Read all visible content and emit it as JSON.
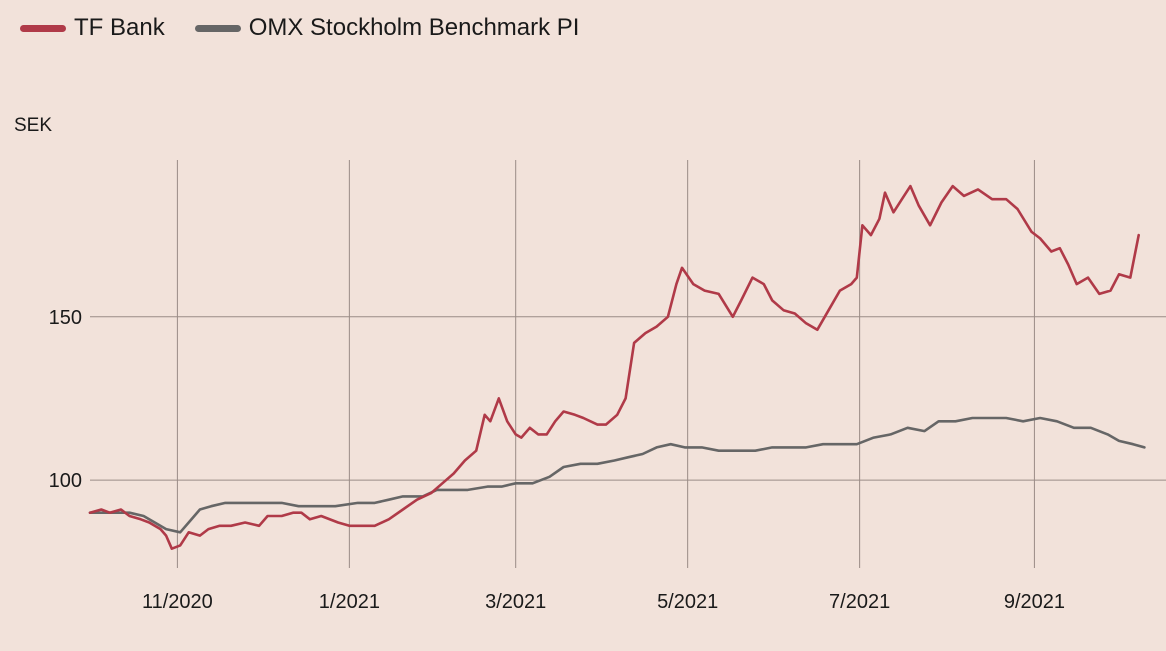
{
  "legend": {
    "items": [
      {
        "label": "TF Bank",
        "color": "#b03a48"
      },
      {
        "label": "OMX Stockholm Benchmark PI",
        "color": "#666666"
      }
    ]
  },
  "chart_data": {
    "type": "line",
    "title": "",
    "xlabel": "",
    "ylabel": "SEK",
    "x_tick_labels": [
      "11/2020",
      "1/2021",
      "3/2021",
      "5/2021",
      "7/2021",
      "9/2021"
    ],
    "y_tick_labels": [
      "100",
      "150"
    ],
    "y_ticks": [
      100,
      150
    ],
    "ylim": [
      74,
      198
    ],
    "xlim": [
      "2020-10-01",
      "2021-10-12"
    ],
    "grid": true,
    "legend_position": "top-left",
    "series": [
      {
        "name": "TF Bank",
        "color": "#b03a48",
        "points": [
          [
            "2020-10-01",
            90
          ],
          [
            "2020-10-05",
            91
          ],
          [
            "2020-10-08",
            90
          ],
          [
            "2020-10-12",
            91
          ],
          [
            "2020-10-15",
            89
          ],
          [
            "2020-10-19",
            88
          ],
          [
            "2020-10-22",
            87
          ],
          [
            "2020-10-26",
            85
          ],
          [
            "2020-10-28",
            83
          ],
          [
            "2020-10-30",
            79
          ],
          [
            "2020-11-02",
            80
          ],
          [
            "2020-11-05",
            84
          ],
          [
            "2020-11-09",
            83
          ],
          [
            "2020-11-12",
            85
          ],
          [
            "2020-11-16",
            86
          ],
          [
            "2020-11-20",
            86
          ],
          [
            "2020-11-25",
            87
          ],
          [
            "2020-11-30",
            86
          ],
          [
            "2020-12-03",
            89
          ],
          [
            "2020-12-08",
            89
          ],
          [
            "2020-12-12",
            90
          ],
          [
            "2020-12-15",
            90
          ],
          [
            "2020-12-18",
            88
          ],
          [
            "2020-12-22",
            89
          ],
          [
            "2020-12-28",
            87
          ],
          [
            "2021-01-01",
            86
          ],
          [
            "2021-01-05",
            86
          ],
          [
            "2021-01-10",
            86
          ],
          [
            "2021-01-15",
            88
          ],
          [
            "2021-01-20",
            91
          ],
          [
            "2021-01-25",
            94
          ],
          [
            "2021-01-30",
            96
          ],
          [
            "2021-02-03",
            99
          ],
          [
            "2021-02-07",
            102
          ],
          [
            "2021-02-11",
            106
          ],
          [
            "2021-02-15",
            109
          ],
          [
            "2021-02-18",
            120
          ],
          [
            "2021-02-20",
            118
          ],
          [
            "2021-02-23",
            125
          ],
          [
            "2021-02-26",
            118
          ],
          [
            "2021-03-01",
            114
          ],
          [
            "2021-03-03",
            113
          ],
          [
            "2021-03-06",
            116
          ],
          [
            "2021-03-09",
            114
          ],
          [
            "2021-03-12",
            114
          ],
          [
            "2021-03-15",
            118
          ],
          [
            "2021-03-18",
            121
          ],
          [
            "2021-03-22",
            120
          ],
          [
            "2021-03-25",
            119
          ],
          [
            "2021-03-30",
            117
          ],
          [
            "2021-04-02",
            117
          ],
          [
            "2021-04-06",
            120
          ],
          [
            "2021-04-09",
            125
          ],
          [
            "2021-04-12",
            142
          ],
          [
            "2021-04-16",
            145
          ],
          [
            "2021-04-20",
            147
          ],
          [
            "2021-04-24",
            150
          ],
          [
            "2021-04-27",
            160
          ],
          [
            "2021-04-29",
            165
          ],
          [
            "2021-05-03",
            160
          ],
          [
            "2021-05-07",
            158
          ],
          [
            "2021-05-12",
            157
          ],
          [
            "2021-05-17",
            150
          ],
          [
            "2021-05-20",
            155
          ],
          [
            "2021-05-24",
            162
          ],
          [
            "2021-05-28",
            160
          ],
          [
            "2021-05-31",
            155
          ],
          [
            "2021-06-04",
            152
          ],
          [
            "2021-06-08",
            151
          ],
          [
            "2021-06-12",
            148
          ],
          [
            "2021-06-16",
            146
          ],
          [
            "2021-06-20",
            152
          ],
          [
            "2021-06-24",
            158
          ],
          [
            "2021-06-28",
            160
          ],
          [
            "2021-06-30",
            162
          ],
          [
            "2021-07-02",
            178
          ],
          [
            "2021-07-05",
            175
          ],
          [
            "2021-07-08",
            180
          ],
          [
            "2021-07-10",
            188
          ],
          [
            "2021-07-13",
            182
          ],
          [
            "2021-07-16",
            186
          ],
          [
            "2021-07-19",
            190
          ],
          [
            "2021-07-22",
            184
          ],
          [
            "2021-07-26",
            178
          ],
          [
            "2021-07-30",
            185
          ],
          [
            "2021-08-03",
            190
          ],
          [
            "2021-08-07",
            187
          ],
          [
            "2021-08-12",
            189
          ],
          [
            "2021-08-17",
            186
          ],
          [
            "2021-08-22",
            186
          ],
          [
            "2021-08-26",
            183
          ],
          [
            "2021-08-31",
            176
          ],
          [
            "2021-09-03",
            174
          ],
          [
            "2021-09-07",
            170
          ],
          [
            "2021-09-10",
            171
          ],
          [
            "2021-09-13",
            166
          ],
          [
            "2021-09-16",
            160
          ],
          [
            "2021-09-20",
            162
          ],
          [
            "2021-09-24",
            157
          ],
          [
            "2021-09-28",
            158
          ],
          [
            "2021-10-01",
            163
          ],
          [
            "2021-10-05",
            162
          ],
          [
            "2021-10-08",
            175
          ]
        ]
      },
      {
        "name": "OMX Stockholm Benchmark PI",
        "color": "#666666",
        "points": [
          [
            "2020-10-01",
            90
          ],
          [
            "2020-10-05",
            90
          ],
          [
            "2020-10-10",
            90
          ],
          [
            "2020-10-15",
            90
          ],
          [
            "2020-10-20",
            89
          ],
          [
            "2020-10-24",
            87
          ],
          [
            "2020-10-28",
            85
          ],
          [
            "2020-11-02",
            84
          ],
          [
            "2020-11-05",
            87
          ],
          [
            "2020-11-09",
            91
          ],
          [
            "2020-11-13",
            92
          ],
          [
            "2020-11-18",
            93
          ],
          [
            "2020-11-24",
            93
          ],
          [
            "2020-11-30",
            93
          ],
          [
            "2020-12-08",
            93
          ],
          [
            "2020-12-14",
            92
          ],
          [
            "2020-12-20",
            92
          ],
          [
            "2020-12-27",
            92
          ],
          [
            "2021-01-04",
            93
          ],
          [
            "2021-01-10",
            93
          ],
          [
            "2021-01-15",
            94
          ],
          [
            "2021-01-20",
            95
          ],
          [
            "2021-01-27",
            95
          ],
          [
            "2021-02-01",
            97
          ],
          [
            "2021-02-07",
            97
          ],
          [
            "2021-02-12",
            97
          ],
          [
            "2021-02-19",
            98
          ],
          [
            "2021-02-24",
            98
          ],
          [
            "2021-03-01",
            99
          ],
          [
            "2021-03-07",
            99
          ],
          [
            "2021-03-13",
            101
          ],
          [
            "2021-03-18",
            104
          ],
          [
            "2021-03-24",
            105
          ],
          [
            "2021-03-30",
            105
          ],
          [
            "2021-04-05",
            106
          ],
          [
            "2021-04-10",
            107
          ],
          [
            "2021-04-15",
            108
          ],
          [
            "2021-04-20",
            110
          ],
          [
            "2021-04-25",
            111
          ],
          [
            "2021-04-30",
            110
          ],
          [
            "2021-05-06",
            110
          ],
          [
            "2021-05-12",
            109
          ],
          [
            "2021-05-18",
            109
          ],
          [
            "2021-05-25",
            109
          ],
          [
            "2021-05-31",
            110
          ],
          [
            "2021-06-06",
            110
          ],
          [
            "2021-06-12",
            110
          ],
          [
            "2021-06-18",
            111
          ],
          [
            "2021-06-24",
            111
          ],
          [
            "2021-06-30",
            111
          ],
          [
            "2021-07-06",
            113
          ],
          [
            "2021-07-12",
            114
          ],
          [
            "2021-07-18",
            116
          ],
          [
            "2021-07-24",
            115
          ],
          [
            "2021-07-29",
            118
          ],
          [
            "2021-08-04",
            118
          ],
          [
            "2021-08-10",
            119
          ],
          [
            "2021-08-16",
            119
          ],
          [
            "2021-08-22",
            119
          ],
          [
            "2021-08-28",
            118
          ],
          [
            "2021-09-03",
            119
          ],
          [
            "2021-09-09",
            118
          ],
          [
            "2021-09-15",
            116
          ],
          [
            "2021-09-21",
            116
          ],
          [
            "2021-09-27",
            114
          ],
          [
            "2021-10-01",
            112
          ],
          [
            "2021-10-06",
            111
          ],
          [
            "2021-10-10",
            110
          ]
        ]
      }
    ]
  }
}
